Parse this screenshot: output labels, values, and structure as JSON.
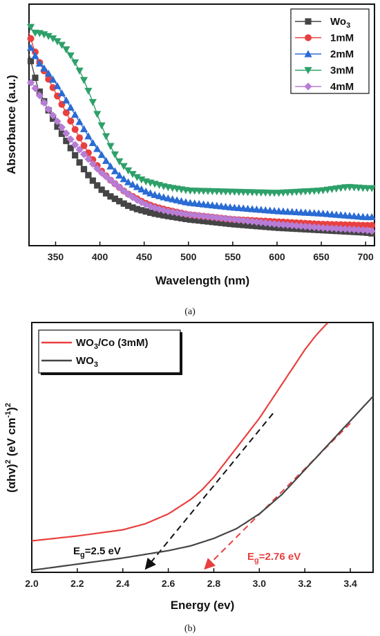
{
  "chart_data": [
    {
      "type": "line",
      "panel_caption": "(a)",
      "xlabel": "Wavelength (nm)",
      "ylabel": "Absorbance (a.u.)",
      "xlim": [
        320,
        710
      ],
      "ylim": [
        0.03,
        1.04
      ],
      "xticks": [
        350,
        400,
        450,
        500,
        550,
        600,
        650,
        700
      ],
      "yticks_shown": false,
      "legend_position": "top-right",
      "series": [
        {
          "name": "Wo",
          "name_sub": "3",
          "color": "#454545",
          "marker": "square",
          "x": [
            320,
            325,
            330,
            340,
            350,
            360,
            370,
            380,
            390,
            400,
            410,
            420,
            430,
            440,
            450,
            460,
            475,
            500,
            550,
            600,
            650,
            700,
            710
          ],
          "y": [
            0.83,
            0.76,
            0.69,
            0.61,
            0.54,
            0.48,
            0.42,
            0.36,
            0.31,
            0.27,
            0.24,
            0.22,
            0.2,
            0.185,
            0.175,
            0.165,
            0.155,
            0.14,
            0.12,
            0.105,
            0.095,
            0.085,
            0.08
          ]
        },
        {
          "name": "1mM",
          "color": "#e8403f",
          "marker": "circle",
          "x": [
            320,
            325,
            330,
            340,
            350,
            360,
            370,
            380,
            390,
            400,
            410,
            420,
            430,
            440,
            450,
            460,
            475,
            500,
            550,
            600,
            650,
            700,
            710
          ],
          "y": [
            0.92,
            0.86,
            0.81,
            0.74,
            0.67,
            0.6,
            0.53,
            0.46,
            0.4,
            0.35,
            0.31,
            0.28,
            0.25,
            0.23,
            0.21,
            0.195,
            0.18,
            0.16,
            0.14,
            0.13,
            0.12,
            0.115,
            0.115
          ]
        },
        {
          "name": "2mM",
          "color": "#2a6bd4",
          "marker": "triangle-up",
          "x": [
            320,
            325,
            330,
            340,
            350,
            360,
            370,
            380,
            390,
            400,
            410,
            420,
            430,
            440,
            450,
            460,
            475,
            500,
            550,
            600,
            650,
            700,
            710
          ],
          "y": [
            0.87,
            0.84,
            0.8,
            0.76,
            0.71,
            0.65,
            0.59,
            0.53,
            0.47,
            0.42,
            0.37,
            0.33,
            0.3,
            0.28,
            0.26,
            0.245,
            0.23,
            0.21,
            0.19,
            0.175,
            0.165,
            0.15,
            0.15
          ]
        },
        {
          "name": "3mM",
          "color": "#2ea06a",
          "marker": "triangle-down",
          "x": [
            320,
            325,
            330,
            340,
            350,
            360,
            370,
            380,
            390,
            400,
            410,
            420,
            430,
            440,
            450,
            460,
            475,
            500,
            550,
            600,
            650,
            680,
            700,
            710
          ],
          "y": [
            0.96,
            0.92,
            0.92,
            0.91,
            0.89,
            0.86,
            0.81,
            0.74,
            0.65,
            0.55,
            0.46,
            0.39,
            0.35,
            0.32,
            0.3,
            0.29,
            0.275,
            0.26,
            0.255,
            0.25,
            0.26,
            0.275,
            0.27,
            0.27
          ]
        },
        {
          "name": "4mM",
          "color": "#b77dd6",
          "marker": "diamond",
          "x": [
            320,
            325,
            330,
            340,
            350,
            360,
            370,
            380,
            390,
            400,
            410,
            420,
            430,
            440,
            450,
            460,
            475,
            500,
            550,
            600,
            650,
            700,
            710
          ],
          "y": [
            0.72,
            0.7,
            0.67,
            0.61,
            0.56,
            0.51,
            0.46,
            0.42,
            0.38,
            0.34,
            0.31,
            0.28,
            0.25,
            0.225,
            0.205,
            0.19,
            0.175,
            0.16,
            0.14,
            0.12,
            0.105,
            0.095,
            0.09
          ]
        }
      ]
    },
    {
      "type": "line",
      "panel_caption": "(b)",
      "xlabel": "Energy (ev)",
      "ylabel": "(αhv)² (eV cm⁻¹)²",
      "ylabel_parts": {
        "base": "(αhv)",
        "sup1": "2",
        "mid": " (eV cm",
        "sup2": "-1",
        "end": ")",
        "sup3": "2"
      },
      "xlim": [
        2.0,
        3.5
      ],
      "ylim": [
        0,
        1.0
      ],
      "xticks": [
        2.0,
        2.2,
        2.4,
        2.6,
        2.8,
        3.0,
        3.2,
        3.4
      ],
      "yticks_shown": false,
      "legend_position": "top-left",
      "series": [
        {
          "name": "WO",
          "name_sub": "3",
          "name_suffix": "/Co (3mM)",
          "color": "#e8403f",
          "x": [
            2.0,
            2.2,
            2.4,
            2.5,
            2.6,
            2.7,
            2.75,
            2.8,
            2.85,
            2.9,
            2.95,
            3.0,
            3.05,
            3.1,
            3.15,
            3.2,
            3.25,
            3.3
          ],
          "y": [
            0.12,
            0.14,
            0.165,
            0.19,
            0.23,
            0.29,
            0.33,
            0.38,
            0.44,
            0.5,
            0.56,
            0.62,
            0.69,
            0.76,
            0.83,
            0.9,
            0.96,
            1.01
          ]
        },
        {
          "name": "WO",
          "name_sub": "3",
          "name_suffix": "",
          "color": "#454545",
          "x": [
            2.0,
            2.2,
            2.4,
            2.6,
            2.7,
            2.8,
            2.9,
            3.0,
            3.05,
            3.1,
            3.15,
            3.2,
            3.25,
            3.3,
            3.35,
            3.4,
            3.45,
            3.5
          ],
          "y": [
            0.0,
            0.025,
            0.05,
            0.08,
            0.1,
            0.13,
            0.17,
            0.23,
            0.27,
            0.31,
            0.36,
            0.41,
            0.46,
            0.51,
            0.56,
            0.61,
            0.66,
            0.71
          ]
        }
      ],
      "tangents": [
        {
          "color": "#111111",
          "x1": 2.5,
          "y1": 0.0,
          "x2": 3.06,
          "y2": 0.64
        },
        {
          "color": "#e8403f",
          "x1": 2.76,
          "y1": 0.0,
          "x2": 3.4,
          "y2": 0.6
        }
      ],
      "annotations": [
        {
          "pre": "E",
          "sub": "g",
          "post": "=2.5 eV",
          "color": "#111111"
        },
        {
          "pre": "E",
          "sub": "g",
          "post": "=2.76 eV",
          "color": "#e8403f"
        }
      ]
    }
  ]
}
